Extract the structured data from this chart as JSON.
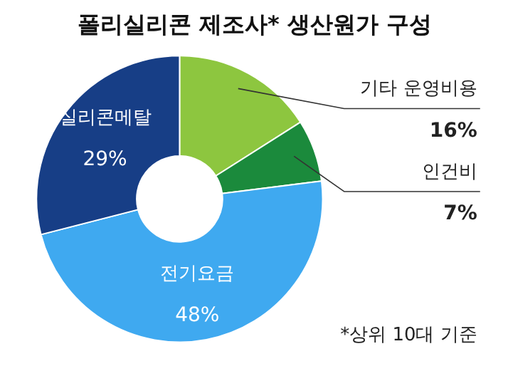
{
  "chart_data": {
    "type": "donut",
    "title": "폴리실리콘 제조사* 생산원가 구성",
    "categories": [
      "기타 운영비용",
      "인건비",
      "전기요금",
      "실리콘메탈"
    ],
    "values": [
      16,
      7,
      48,
      29
    ],
    "value_labels": [
      "16%",
      "7%",
      "48%",
      "29%"
    ],
    "colors": [
      "#8dc63f",
      "#1b8a3c",
      "#3fa9f0",
      "#173e86"
    ],
    "annotations": [
      "*상위 10대 기준"
    ]
  }
}
